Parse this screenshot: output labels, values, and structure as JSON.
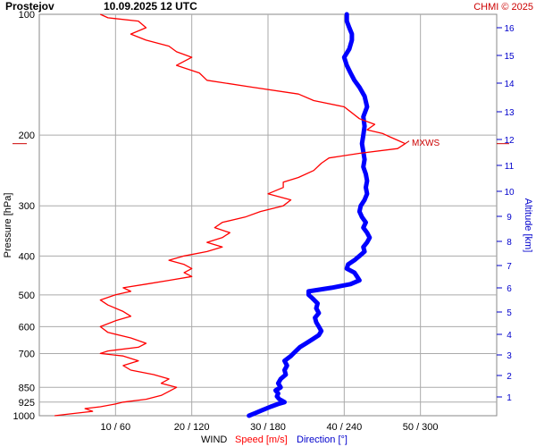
{
  "header": {
    "station": "Prostejov",
    "datetime": "10.09.2025 12 UTC",
    "credit": "CHMI © 2025"
  },
  "chart_data": {
    "type": "line",
    "title": "Prostejov     10.09.2025 12 UTC",
    "ylabel_left": "Pressure [hPa]",
    "ylabel_right": "Altitude [km]",
    "xlabel_prefix": "WIND",
    "xlabel_speed": "Speed [m/s]",
    "xlabel_direction": "Direction [°]",
    "y_scale": "log",
    "ylim_hpa": [
      1000,
      100
    ],
    "pressure_ticks": [
      100,
      200,
      300,
      400,
      500,
      600,
      700,
      850,
      925,
      1000
    ],
    "altitude_ticks_km": [
      1,
      2,
      3,
      4,
      5,
      6,
      7,
      8,
      9,
      10,
      11,
      12,
      13,
      14,
      15,
      16
    ],
    "x_ticks": [
      "10 / 60",
      "20 / 120",
      "30 / 180",
      "40 / 240",
      "50 / 300"
    ],
    "speed_range_ms": [
      0,
      60
    ],
    "direction_range_deg": [
      0,
      360
    ],
    "max_wind_label": "MXWS",
    "max_wind_pressure_hpa": 210,
    "grid": true,
    "colors": {
      "speed": "#ff0000",
      "direction": "#0000ff",
      "grid": "#aaaaaa",
      "right_axis": "#0000cc"
    },
    "series": [
      {
        "name": "Speed [m/s]",
        "points": [
          [
            1000,
            2
          ],
          [
            990,
            4
          ],
          [
            975,
            7
          ],
          [
            960,
            6
          ],
          [
            950,
            8
          ],
          [
            935,
            10
          ],
          [
            925,
            11
          ],
          [
            910,
            14
          ],
          [
            890,
            16
          ],
          [
            870,
            17
          ],
          [
            850,
            18
          ],
          [
            830,
            16
          ],
          [
            810,
            17
          ],
          [
            790,
            15
          ],
          [
            770,
            12
          ],
          [
            750,
            11
          ],
          [
            730,
            13
          ],
          [
            710,
            11
          ],
          [
            700,
            8
          ],
          [
            690,
            9
          ],
          [
            675,
            13
          ],
          [
            660,
            14
          ],
          [
            640,
            12
          ],
          [
            620,
            9
          ],
          [
            600,
            8
          ],
          [
            580,
            10
          ],
          [
            565,
            12
          ],
          [
            550,
            11
          ],
          [
            530,
            9
          ],
          [
            515,
            8
          ],
          [
            500,
            10
          ],
          [
            490,
            12
          ],
          [
            480,
            11
          ],
          [
            470,
            14
          ],
          [
            460,
            17
          ],
          [
            450,
            20
          ],
          [
            440,
            19
          ],
          [
            430,
            20
          ],
          [
            420,
            19
          ],
          [
            410,
            17
          ],
          [
            400,
            19
          ],
          [
            390,
            22
          ],
          [
            380,
            24
          ],
          [
            370,
            22
          ],
          [
            360,
            24
          ],
          [
            350,
            25
          ],
          [
            340,
            23
          ],
          [
            330,
            24
          ],
          [
            320,
            27
          ],
          [
            310,
            29
          ],
          [
            300,
            32
          ],
          [
            290,
            33
          ],
          [
            280,
            30
          ],
          [
            270,
            32
          ],
          [
            262,
            32
          ],
          [
            255,
            34
          ],
          [
            245,
            36
          ],
          [
            235,
            37
          ],
          [
            228,
            38
          ],
          [
            222,
            42
          ],
          [
            216,
            47
          ],
          [
            210,
            48
          ],
          [
            206,
            47
          ],
          [
            202,
            46
          ],
          [
            198,
            45
          ],
          [
            194,
            43
          ],
          [
            188,
            44
          ],
          [
            182,
            42
          ],
          [
            176,
            41
          ],
          [
            170,
            40
          ],
          [
            164,
            36
          ],
          [
            158,
            34
          ],
          [
            152,
            28
          ],
          [
            146,
            22
          ],
          [
            140,
            21
          ],
          [
            134,
            18
          ],
          [
            128,
            20
          ],
          [
            124,
            18
          ],
          [
            120,
            17
          ],
          [
            116,
            14
          ],
          [
            112,
            12
          ],
          [
            108,
            14
          ],
          [
            104,
            13
          ],
          [
            102,
            9
          ],
          [
            100,
            8
          ]
        ]
      },
      {
        "name": "Direction [°]",
        "points": [
          [
            1000,
            165
          ],
          [
            985,
            170
          ],
          [
            970,
            175
          ],
          [
            950,
            182
          ],
          [
            935,
            188
          ],
          [
            925,
            193
          ],
          [
            910,
            189
          ],
          [
            895,
            187
          ],
          [
            880,
            188
          ],
          [
            865,
            186
          ],
          [
            850,
            190
          ],
          [
            830,
            188
          ],
          [
            810,
            190
          ],
          [
            790,
            194
          ],
          [
            770,
            193
          ],
          [
            750,
            195
          ],
          [
            730,
            193
          ],
          [
            710,
            198
          ],
          [
            700,
            200
          ],
          [
            690,
            202
          ],
          [
            675,
            205
          ],
          [
            660,
            210
          ],
          [
            645,
            215
          ],
          [
            630,
            220
          ],
          [
            615,
            222
          ],
          [
            600,
            220
          ],
          [
            585,
            218
          ],
          [
            570,
            217
          ],
          [
            555,
            220
          ],
          [
            540,
            218
          ],
          [
            525,
            219
          ],
          [
            510,
            215
          ],
          [
            500,
            212
          ],
          [
            490,
            212
          ],
          [
            480,
            230
          ],
          [
            470,
            245
          ],
          [
            460,
            252
          ],
          [
            450,
            250
          ],
          [
            440,
            248
          ],
          [
            430,
            242
          ],
          [
            420,
            243
          ],
          [
            410,
            248
          ],
          [
            400,
            252
          ],
          [
            390,
            256
          ],
          [
            380,
            255
          ],
          [
            370,
            258
          ],
          [
            360,
            260
          ],
          [
            350,
            258
          ],
          [
            340,
            255
          ],
          [
            330,
            257
          ],
          [
            320,
            254
          ],
          [
            310,
            252
          ],
          [
            300,
            253
          ],
          [
            290,
            256
          ],
          [
            280,
            258
          ],
          [
            270,
            257
          ],
          [
            260,
            258
          ],
          [
            250,
            257
          ],
          [
            240,
            255
          ],
          [
            230,
            256
          ],
          [
            220,
            255
          ],
          [
            210,
            254
          ],
          [
            200,
            255
          ],
          [
            190,
            256
          ],
          [
            180,
            255
          ],
          [
            170,
            258
          ],
          [
            160,
            256
          ],
          [
            152,
            252
          ],
          [
            146,
            248
          ],
          [
            140,
            245
          ],
          [
            134,
            242
          ],
          [
            128,
            240
          ],
          [
            122,
            244
          ],
          [
            116,
            246
          ],
          [
            112,
            246
          ],
          [
            108,
            244
          ],
          [
            104,
            242
          ],
          [
            100,
            242
          ]
        ]
      }
    ]
  }
}
